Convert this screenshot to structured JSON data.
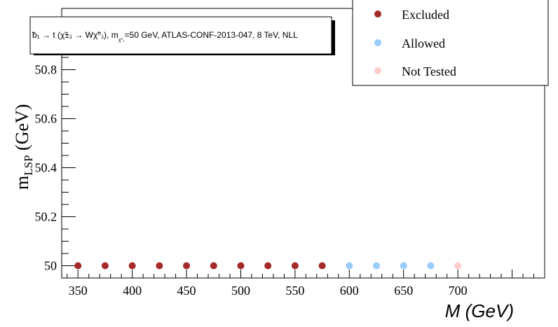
{
  "chart_data": {
    "type": "scatter",
    "title": "b̃₁ → t (χ̃±₁ → Wχ̃⁰₁), mχ̃⁰₁=50 GeV, ATLAS-CONF-2013-047, 8 TeV, NLL",
    "title_parts": {
      "decay": "̃b₁ → t (χ̃±₁ → Wχ̃⁰₁), m",
      "sub": "χ⁰₁",
      "rest": "=50 GeV, ATLAS-CONF-2013-047, 8 TeV, NLL"
    },
    "xlabel": "M (GeV)",
    "ylabel_main": "m",
    "ylabel_sub": "LSP",
    "ylabel_unit": " (GeV)",
    "xlim": [
      335,
      780
    ],
    "ylim": [
      49.95,
      51.05
    ],
    "x_ticks": [
      350,
      400,
      450,
      500,
      550,
      600,
      650,
      700
    ],
    "y_ticks": [
      "50",
      "50.2",
      "50.4",
      "50.6",
      "50.8"
    ],
    "y_tick_values": [
      50,
      50.2,
      50.4,
      50.6,
      50.8
    ],
    "legend_position": "top-right",
    "series": [
      {
        "name": "Excluded",
        "color": "#a52a2a",
        "points": [
          [
            350,
            50
          ],
          [
            375,
            50
          ],
          [
            400,
            50
          ],
          [
            425,
            50
          ],
          [
            450,
            50
          ],
          [
            475,
            50
          ],
          [
            500,
            50
          ],
          [
            525,
            50
          ],
          [
            550,
            50
          ],
          [
            575,
            50
          ]
        ]
      },
      {
        "name": "Allowed",
        "color": "#99ccff",
        "points": [
          [
            600,
            50
          ],
          [
            625,
            50
          ],
          [
            650,
            50
          ],
          [
            675,
            50
          ]
        ]
      },
      {
        "name": "Not Tested",
        "color": "#ffcccc",
        "points": [
          [
            700,
            50
          ]
        ]
      }
    ]
  }
}
